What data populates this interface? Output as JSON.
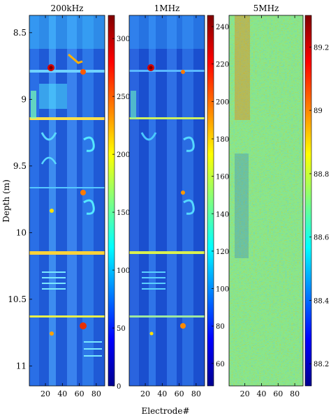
{
  "figure": {
    "ylabel": "Depth (m)",
    "xlabel": "Electrode#"
  },
  "chart_data": [
    {
      "type": "heatmap",
      "title": "200kHz",
      "x_ticks": [
        20,
        40,
        60,
        80
      ],
      "xlim": [
        1,
        90
      ],
      "y_ticks": [
        8.5,
        9,
        9.5,
        10,
        10.5,
        11
      ],
      "y_tick_labels": [
        "8.5",
        "9",
        "9.5",
        "10",
        "10.5",
        "11"
      ],
      "ylim": [
        8.37,
        11.15
      ],
      "y_reversed": true,
      "colorbar": {
        "ticks": [
          0,
          50,
          100,
          150,
          200,
          250,
          300
        ],
        "range": [
          0,
          320
        ]
      }
    },
    {
      "type": "heatmap",
      "title": "1MHz",
      "x_ticks": [
        20,
        40,
        60,
        80
      ],
      "xlim": [
        1,
        90
      ],
      "ylim": [
        8.37,
        11.15
      ],
      "y_reversed": true,
      "colorbar": {
        "ticks": [
          60,
          80,
          100,
          120,
          140,
          160,
          180,
          200,
          220,
          240
        ],
        "range": [
          48,
          246
        ]
      }
    },
    {
      "type": "heatmap",
      "title": "5MHz",
      "x_ticks": [
        20,
        40,
        60,
        80
      ],
      "xlim": [
        1,
        90
      ],
      "ylim": [
        8.37,
        11.15
      ],
      "y_reversed": true,
      "colorbar": {
        "ticks": [
          88.2,
          88.4,
          88.6,
          88.8,
          89,
          89.2
        ],
        "tick_labels": [
          "88.2",
          "88.4",
          "88.6",
          "88.8",
          "89",
          "89.2"
        ],
        "range": [
          88.13,
          89.3
        ]
      }
    }
  ]
}
